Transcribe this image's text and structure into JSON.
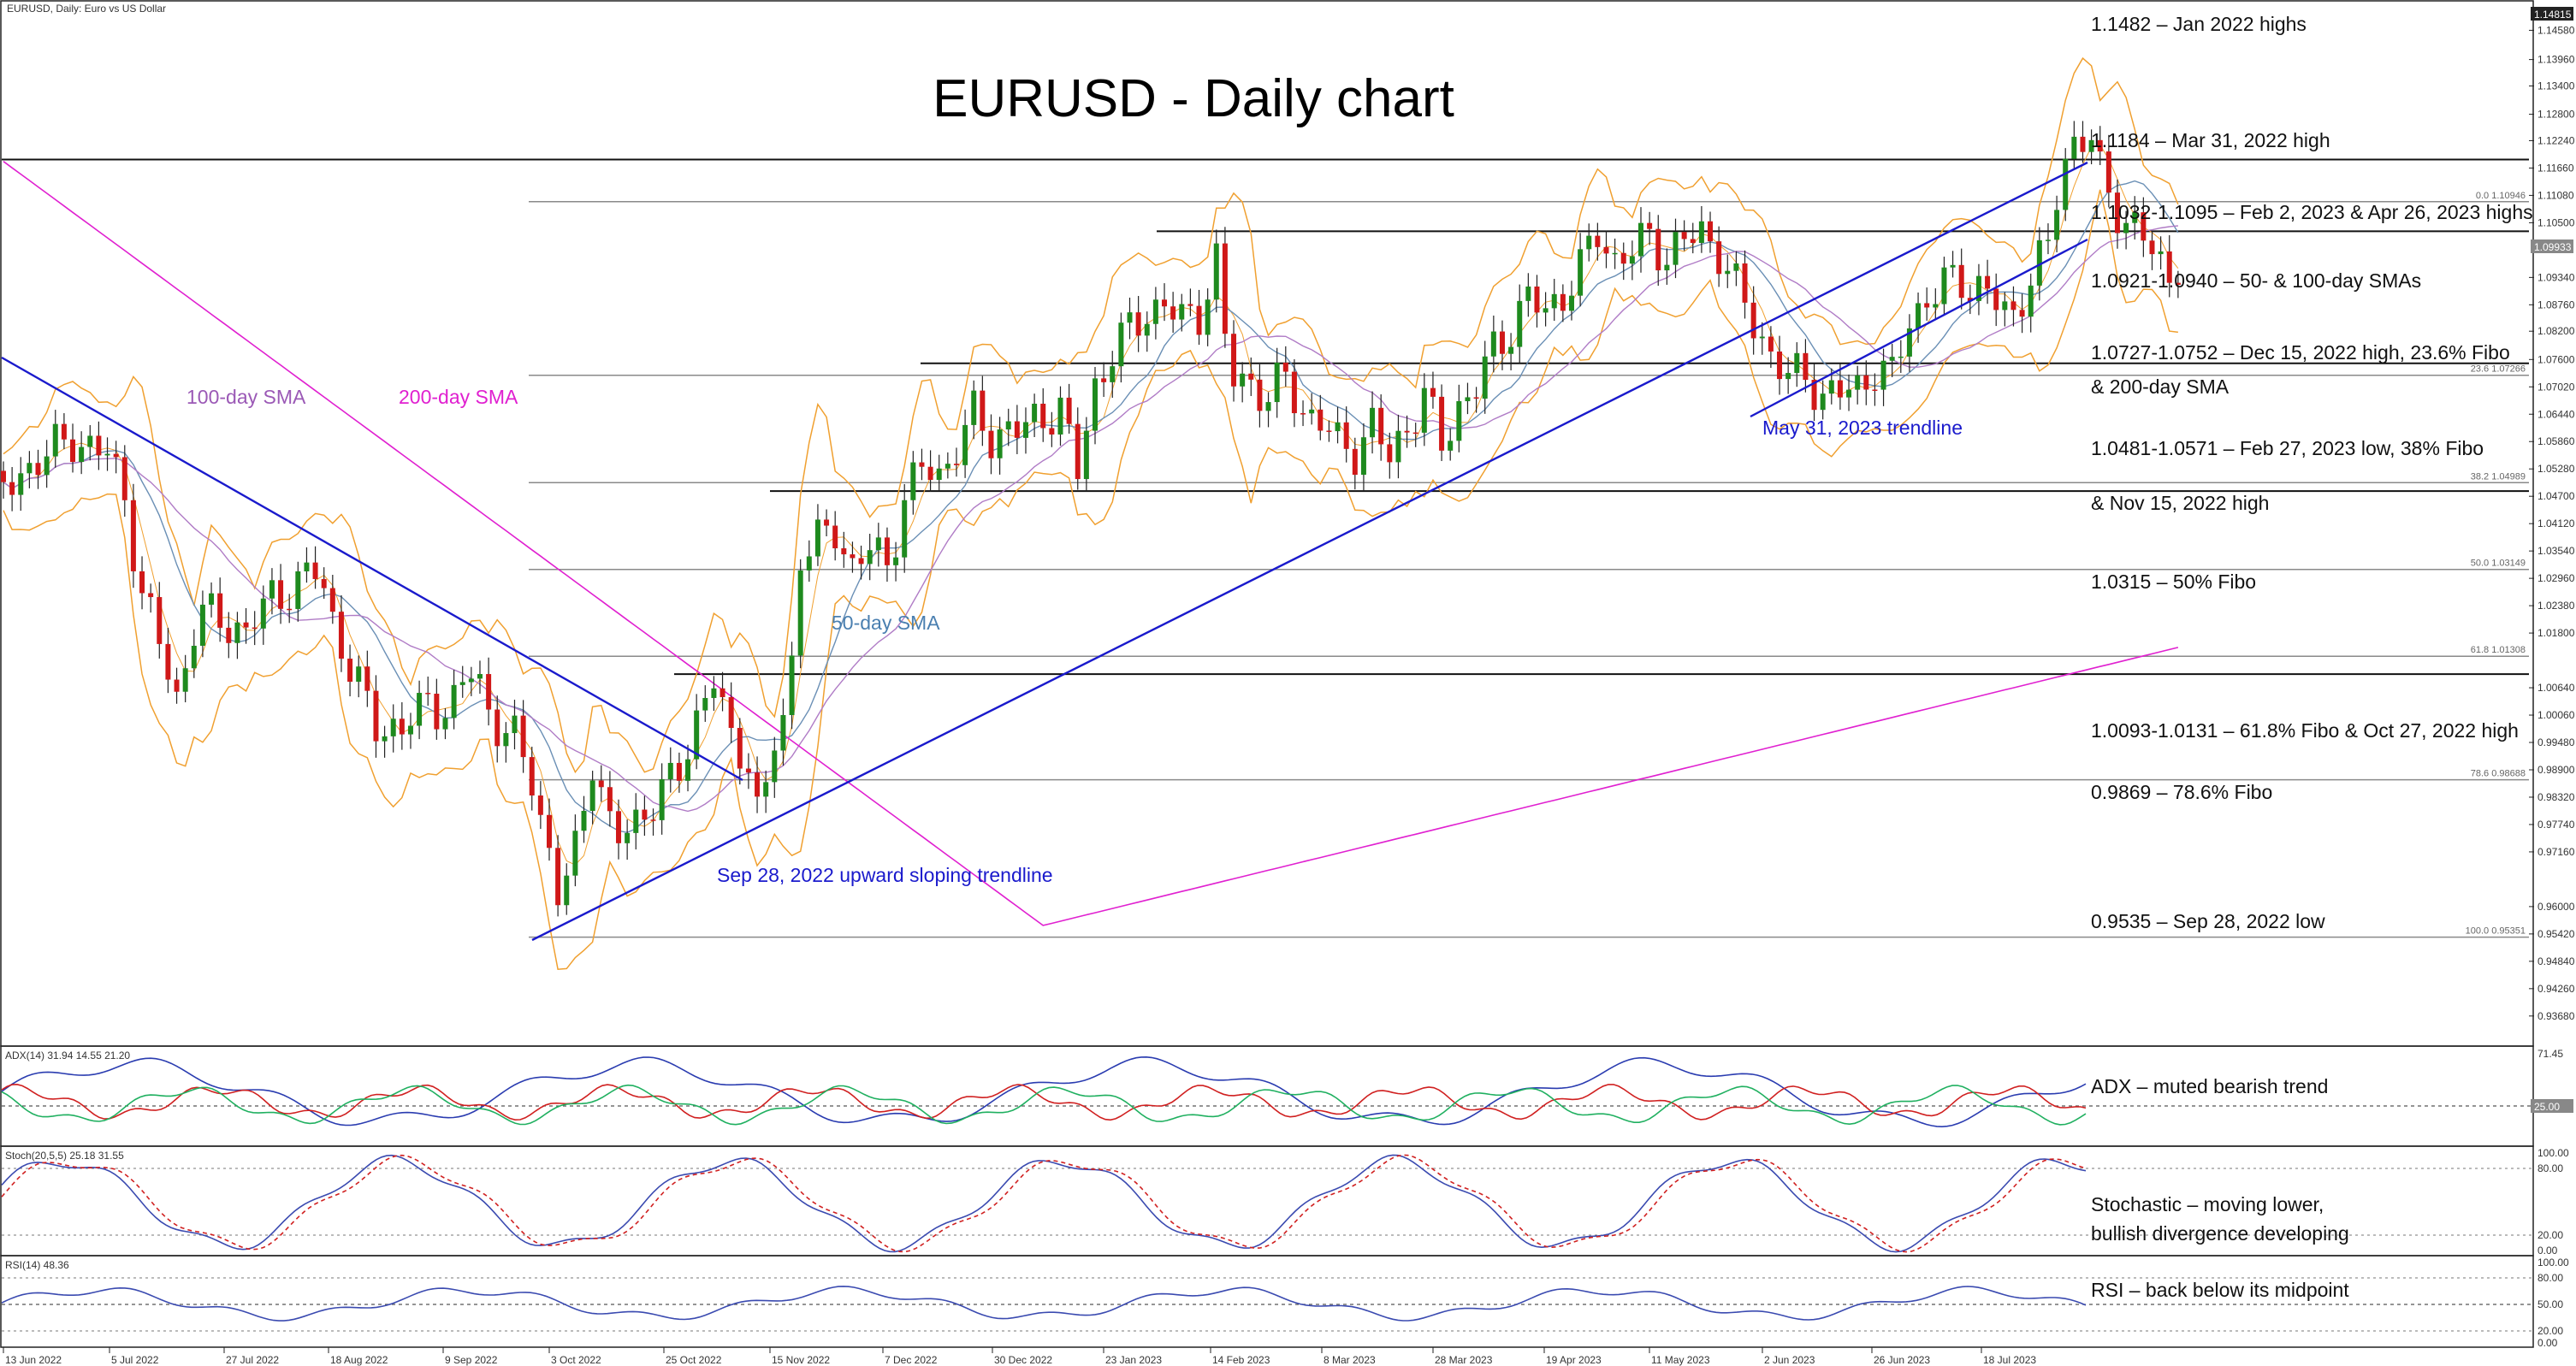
{
  "header": {
    "symbol_label": "EURUSD, Daily:  Euro vs US Dollar",
    "title": "EURUSD - Daily chart"
  },
  "chart_data": {
    "type": "candlestick",
    "title": "EURUSD - Daily chart",
    "price_axis": {
      "ylim": [
        0.9306,
        1.1515
      ],
      "ticks": [
        "1.14580",
        "1.13960",
        "1.13400",
        "1.12800",
        "1.12240",
        "1.11660",
        "1.11080",
        "1.10500",
        "1.09340",
        "1.08760",
        "1.08200",
        "1.07600",
        "1.07020",
        "1.06440",
        "1.05860",
        "1.05280",
        "1.04700",
        "1.04120",
        "1.03540",
        "1.02960",
        "1.02380",
        "1.01800",
        "1.00640",
        "1.00060",
        "0.99480",
        "0.98900",
        "0.98320",
        "0.97740",
        "0.97160",
        "0.96000",
        "0.95420",
        "0.94840",
        "0.94260",
        "0.93680"
      ],
      "current_price": "1.09933",
      "top_marker": "1.14815"
    },
    "x_ticks": [
      "13 Jun 2022",
      "5 Jul 2022",
      "27 Jul 2022",
      "18 Aug 2022",
      "9 Sep 2022",
      "3 Oct 2022",
      "25 Oct 2022",
      "15 Nov 2022",
      "7 Dec 2022",
      "30 Dec 2022",
      "23 Jan 2023",
      "14 Feb 2023",
      "8 Mar 2023",
      "28 Mar 2023",
      "19 Apr 2023",
      "11 May 2023",
      "2 Jun 2023",
      "26 Jun 2023",
      "18 Jul 2023"
    ],
    "fib_levels": [
      {
        "label": "0.0 1.10946",
        "price": 1.10946
      },
      {
        "label": "23.6 1.07266",
        "price": 1.07266
      },
      {
        "label": "38.2 1.04989",
        "price": 1.04989
      },
      {
        "label": "50.0 1.03149",
        "price": 1.03149
      },
      {
        "label": "61.8 1.01308",
        "price": 1.01308
      },
      {
        "label": "78.6 0.98688",
        "price": 0.98688
      },
      {
        "label": "100.0 0.95351",
        "price": 0.95351
      }
    ],
    "horizontal_lines": [
      1.1184,
      1.1032,
      1.0752,
      1.0481,
      1.0093
    ],
    "annotations": [
      "1.1482 – Jan 2022 highs",
      "1.1184 – Mar 31, 2022 high",
      "1.1032-1.1095 – Feb 2, 2023 & Apr 26, 2023 highs",
      "1.0921-1.0940 – 50- & 100-day SMAs",
      "1.0727-1.0752 – Dec 15, 2022 high, 23.6% Fibo",
      "& 200-day SMA",
      "1.0481-1.0571 – Feb 27, 2023 low, 38% Fibo",
      "& Nov 15, 2022 high",
      "1.0315 – 50% Fibo",
      "1.0093-1.0131 – 61.8% Fibo & Oct 27, 2022 high",
      "0.9869 – 78.6% Fibo",
      "0.9535 – Sep 28, 2022 low"
    ],
    "chart_labels": {
      "sma100": "100-day SMA",
      "sma200": "200-day SMA",
      "sma50": "50-day SMA",
      "trend_sep": "Sep 28, 2022 upward sloping trendline",
      "trend_may": "May 31, 2023 trendline"
    },
    "close_path": [
      [
        0,
        1.048
      ],
      [
        20,
        1.055
      ],
      [
        40,
        1.059
      ],
      [
        60,
        1.056
      ],
      [
        70,
        1.047
      ],
      [
        80,
        1.026
      ],
      [
        90,
        1.016
      ],
      [
        100,
        1.004
      ],
      [
        112,
        1.022
      ],
      [
        125,
        1.021
      ],
      [
        140,
        1.018
      ],
      [
        155,
        1.026
      ],
      [
        170,
        1.028
      ],
      [
        182,
        1.032
      ],
      [
        190,
        1.021
      ],
      [
        200,
        1.01
      ],
      [
        215,
        0.999
      ],
      [
        230,
        0.997
      ],
      [
        245,
        1.004
      ],
      [
        258,
        1.001
      ],
      [
        272,
        1.012
      ],
      [
        282,
        0.999
      ],
      [
        295,
        0.995
      ],
      [
        305,
        0.988
      ],
      [
        312,
        0.976
      ],
      [
        320,
        0.962
      ],
      [
        328,
        0.968
      ],
      [
        340,
        0.992
      ],
      [
        352,
        0.973
      ],
      [
        363,
        0.978
      ],
      [
        375,
        0.982
      ],
      [
        388,
        0.987
      ],
      [
        400,
        1.0
      ],
      [
        410,
        1.008
      ],
      [
        420,
        0.995
      ],
      [
        430,
        0.992
      ],
      [
        437,
        0.975
      ],
      [
        443,
        0.993
      ],
      [
        450,
        1.0
      ],
      [
        455,
        1.012
      ],
      [
        460,
        1.035
      ],
      [
        470,
        1.037
      ],
      [
        480,
        1.04
      ],
      [
        490,
        1.032
      ],
      [
        500,
        1.036
      ],
      [
        510,
        1.032
      ],
      [
        520,
        1.047
      ],
      [
        530,
        1.053
      ],
      [
        540,
        1.051
      ],
      [
        550,
        1.058
      ],
      [
        560,
        1.064
      ],
      [
        570,
        1.059
      ],
      [
        580,
        1.062
      ],
      [
        590,
        1.061
      ],
      [
        600,
        1.064
      ],
      [
        610,
        1.066
      ],
      [
        620,
        1.052
      ],
      [
        630,
        1.07
      ],
      [
        640,
        1.078
      ],
      [
        650,
        1.082
      ],
      [
        660,
        1.086
      ],
      [
        670,
        1.088
      ],
      [
        680,
        1.084
      ],
      [
        690,
        1.086
      ],
      [
        700,
        1.097
      ],
      [
        705,
        1.08
      ],
      [
        710,
        1.072
      ],
      [
        720,
        1.071
      ],
      [
        730,
        1.068
      ],
      [
        740,
        1.072
      ],
      [
        750,
        1.065
      ],
      [
        760,
        1.063
      ],
      [
        770,
        1.058
      ],
      [
        780,
        1.057
      ],
      [
        790,
        1.062
      ],
      [
        800,
        1.055
      ],
      [
        810,
        1.062
      ],
      [
        820,
        1.068
      ],
      [
        830,
        1.058
      ],
      [
        840,
        1.066
      ],
      [
        850,
        1.07
      ],
      [
        860,
        1.078
      ],
      [
        870,
        1.083
      ],
      [
        880,
        1.089
      ],
      [
        890,
        1.086
      ],
      [
        900,
        1.09
      ],
      [
        910,
        1.095
      ],
      [
        920,
        1.103
      ],
      [
        930,
        1.097
      ],
      [
        940,
        1.099
      ],
      [
        950,
        1.102
      ],
      [
        960,
        1.098
      ],
      [
        970,
        1.101
      ],
      [
        980,
        1.103
      ],
      [
        990,
        1.099
      ],
      [
        1000,
        1.091
      ],
      [
        1010,
        1.084
      ],
      [
        1020,
        1.077
      ],
      [
        1030,
        1.072
      ],
      [
        1040,
        1.073
      ],
      [
        1050,
        1.068
      ],
      [
        1060,
        1.069
      ],
      [
        1070,
        1.07
      ],
      [
        1080,
        1.074
      ],
      [
        1090,
        1.072
      ],
      [
        1100,
        1.085
      ],
      [
        1110,
        1.088
      ],
      [
        1120,
        1.092
      ],
      [
        1130,
        1.093
      ],
      [
        1140,
        1.091
      ],
      [
        1150,
        1.088
      ],
      [
        1160,
        1.085
      ],
      [
        1170,
        1.094
      ],
      [
        1180,
        1.099
      ],
      [
        1188,
        1.118
      ],
      [
        1195,
        1.122
      ],
      [
        1205,
        1.123
      ],
      [
        1212,
        1.112
      ],
      [
        1220,
        1.108
      ],
      [
        1230,
        1.104
      ],
      [
        1240,
        1.099
      ],
      [
        1250,
        1.093
      ],
      [
        1258,
        1.0993
      ]
    ],
    "panels": [
      {
        "name": "ADX",
        "label": "ADX(14) 31.94 14.55 21.20",
        "scale_max": "71.45",
        "level": "25.00",
        "annotation": "ADX – muted bearish trend"
      },
      {
        "name": "Stochastic",
        "label": "Stoch(20,5,5) 25.18 31.55",
        "scale": [
          "100.00",
          "80.00",
          "20.00",
          "0.00"
        ],
        "annotation_1": "Stochastic – moving lower,",
        "annotation_2": "bullish divergence developing"
      },
      {
        "name": "RSI",
        "label": "RSI(14) 48.36",
        "scale": [
          "100.00",
          "80.00",
          "50.00",
          "20.00",
          "0.00"
        ],
        "annotation": "RSI – back below its midpoint"
      }
    ]
  }
}
